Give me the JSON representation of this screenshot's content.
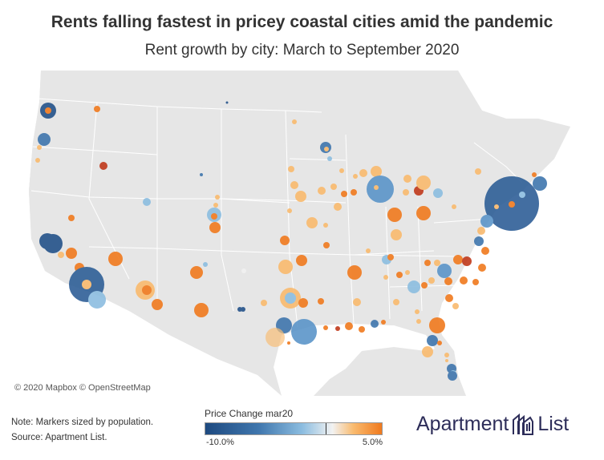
{
  "title": "Rents falling fastest in pricey coastal cities amid the pandemic",
  "subtitle": "Rent growth by city: March to September 2020",
  "attribution": "© 2020 Mapbox © OpenStreetMap",
  "notes": {
    "line1": "Note: Markers sized by population.",
    "line2": "Source: Apartment List."
  },
  "legend": {
    "title": "Price Change mar20",
    "min_label": "-10.0%",
    "max_label": "5.0%",
    "colors": [
      "#1e4a80",
      "#3f76ad",
      "#8cbde0",
      "#f2f2f2",
      "#f9ba6e",
      "#f07a1e"
    ]
  },
  "brand": {
    "word1": "Apartment",
    "word2": "List",
    "color": "#2d2d59",
    "logo_icon": "building-icon"
  },
  "map_colors": {
    "water": "#ffffff",
    "land": "#e6e6e6",
    "border": "#ffffff"
  }
}
